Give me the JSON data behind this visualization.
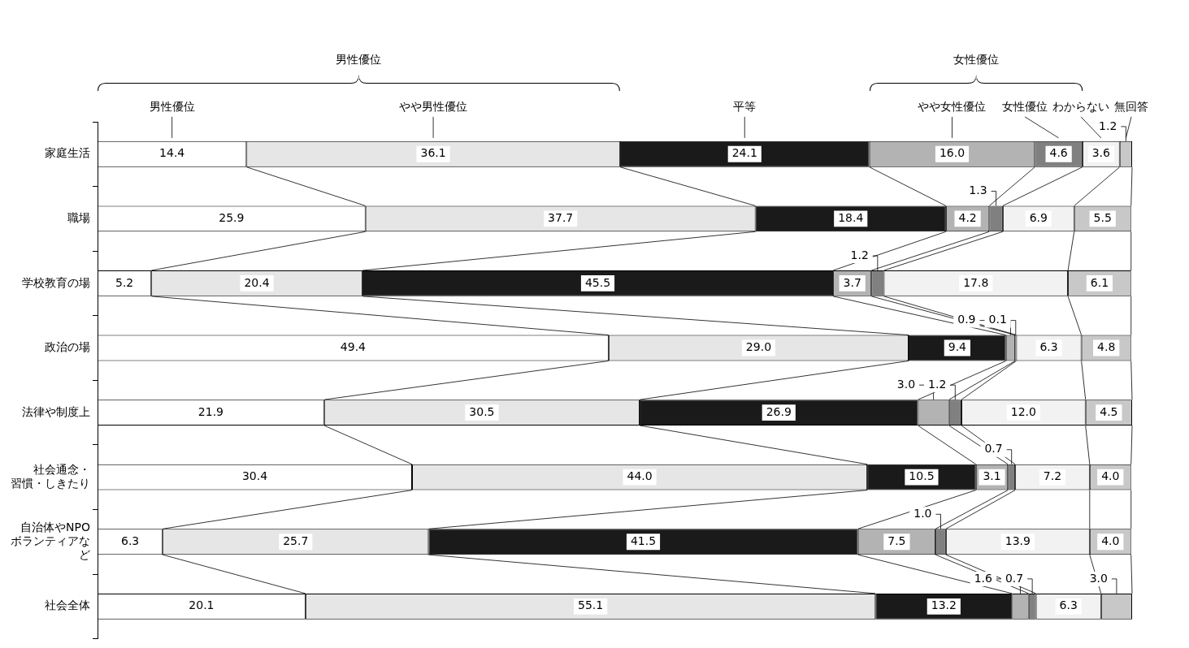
{
  "chart_data": {
    "type": "bar",
    "orientation": "horizontal",
    "stacked": true,
    "legend": "top",
    "tick_labels": "y",
    "categories": [
      "家庭生活",
      "職場",
      "学校教育の場",
      "政治の場",
      "法律や制度上",
      "社会通念・習慣・しきたり",
      "自治体やNPOボランティアなど",
      "社会全体"
    ],
    "series": [
      {
        "name": "男性優位",
        "color": "#ffffff",
        "values": [
          14.4,
          25.9,
          5.2,
          49.4,
          21.9,
          30.4,
          6.3,
          20.1
        ],
        "value_labels": [
          "14.4",
          "25.9",
          "5.2",
          "49.4",
          "21.9",
          "30.4",
          "6.3",
          "20.1"
        ]
      },
      {
        "name": "やや男性優位",
        "color": "#e6e6e6",
        "values": [
          36.1,
          37.7,
          20.4,
          29.0,
          30.5,
          44.0,
          25.7,
          55.1
        ],
        "value_labels": [
          "36.1",
          "37.7",
          "20.4",
          "29.0",
          "30.5",
          "44.0",
          "25.7",
          "55.1"
        ]
      },
      {
        "name": "平等",
        "color": "#1a1a1a",
        "values": [
          24.1,
          18.4,
          45.5,
          9.4,
          26.9,
          10.5,
          41.5,
          13.2
        ],
        "value_labels": [
          "24.1",
          "18.4",
          "45.5",
          "9.4",
          "26.9",
          "10.5",
          "41.5",
          "13.2"
        ]
      },
      {
        "name": "やや女性優位",
        "color": "#b3b3b3",
        "values": [
          16.0,
          4.2,
          3.7,
          0.9,
          3.0,
          3.1,
          7.5,
          1.6
        ],
        "value_labels": [
          "16.0",
          "4.2",
          "3.7",
          "0.9",
          "3.0",
          "3.1",
          "7.5",
          "1.6"
        ]
      },
      {
        "name": "女性優位",
        "color": "#808080",
        "values": [
          4.6,
          1.3,
          1.2,
          0.1,
          1.2,
          0.7,
          1.0,
          0.7
        ],
        "value_labels": [
          "4.6",
          "1.3",
          "1.2",
          "0.1",
          "1.2",
          "0.7",
          "1.0",
          "0.7"
        ]
      },
      {
        "name": "わからない",
        "color": "#f2f2f2",
        "values": [
          3.6,
          6.9,
          17.8,
          6.3,
          12.0,
          7.2,
          13.9,
          6.3
        ],
        "value_labels": [
          "3.6",
          "6.9",
          "17.8",
          "6.3",
          "12.0",
          "7.2",
          "13.9",
          "6.3"
        ]
      },
      {
        "name": "無回答",
        "color": "#c8c8c8",
        "values": [
          1.2,
          5.5,
          6.1,
          4.8,
          4.5,
          4.0,
          4.0,
          3.0
        ],
        "value_labels": [
          "1.2",
          "5.5",
          "6.1",
          "4.8",
          "4.5",
          "4.0",
          "4.0",
          "3.0"
        ]
      }
    ],
    "annotations": [
      "男性優位",
      "女性優位"
    ]
  }
}
